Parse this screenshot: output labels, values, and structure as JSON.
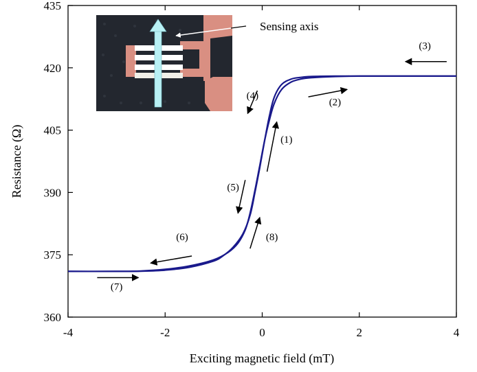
{
  "chart_data": {
    "type": "line",
    "title": "",
    "xlabel": "Exciting magnetic field (mT)",
    "ylabel": "Resistance (Ω)",
    "xlim": [
      -4,
      4
    ],
    "ylim": [
      360,
      435
    ],
    "xticks": [
      -4,
      -2,
      0,
      2,
      4
    ],
    "xtick_labels": [
      "-4",
      "-2",
      "0",
      "2",
      "4"
    ],
    "yticks": [
      360,
      375,
      390,
      405,
      420,
      435
    ],
    "ytick_labels": [
      "360",
      "375",
      "390",
      "405",
      "420",
      "435"
    ],
    "grid": false,
    "line_color": "#1a1a8c",
    "series": [
      {
        "x": [
          -4.0,
          -3.0,
          -2.5,
          -2.0,
          -1.5,
          -1.0,
          -0.7,
          -0.5,
          -0.35,
          -0.25,
          -0.15,
          -0.05,
          0.05,
          0.15,
          0.25,
          0.4,
          0.6,
          0.8,
          1.0,
          1.5,
          2.0,
          3.0,
          4.0
        ],
        "y": [
          371.0,
          371.0,
          371.1,
          371.5,
          372.3,
          373.8,
          375.6,
          377.8,
          381.0,
          385.0,
          390.5,
          396.5,
          402.5,
          407.5,
          411.5,
          414.8,
          416.6,
          417.3,
          417.6,
          417.9,
          418.0,
          418.0,
          418.0
        ]
      },
      {
        "x": [
          4.0,
          3.0,
          2.0,
          1.5,
          1.0,
          0.8,
          0.6,
          0.4,
          0.25,
          0.15,
          0.05,
          -0.05,
          -0.15,
          -0.25,
          -0.4,
          -0.6,
          -0.8,
          -1.0,
          -1.5,
          -2.0,
          -2.5,
          -3.0,
          -4.0
        ],
        "y": [
          418.0,
          418.0,
          418.0,
          418.0,
          417.9,
          417.7,
          417.3,
          416.0,
          413.0,
          408.5,
          402.5,
          396.0,
          390.0,
          384.5,
          380.0,
          376.8,
          374.8,
          373.5,
          372.0,
          371.3,
          371.05,
          371.0,
          371.0
        ]
      }
    ],
    "annotations": [
      {
        "label": "(1)",
        "x": 0.5,
        "y": 402
      },
      {
        "label": "(2)",
        "x": 1.5,
        "y": 411
      },
      {
        "label": "(3)",
        "x": 3.35,
        "y": 424.5
      },
      {
        "label": "(4)",
        "x": -0.2,
        "y": 412.5
      },
      {
        "label": "(5)",
        "x": -0.6,
        "y": 390.5
      },
      {
        "label": "(6)",
        "x": -1.65,
        "y": 378.5
      },
      {
        "label": "(7)",
        "x": -3.0,
        "y": 366.5
      },
      {
        "label": "(8)",
        "x": 0.2,
        "y": 378.5
      }
    ],
    "arrows": [
      {
        "from": [
          0.1,
          395
        ],
        "to": [
          0.3,
          407
        ]
      },
      {
        "from": [
          0.95,
          413
        ],
        "to": [
          1.75,
          414.8
        ]
      },
      {
        "from": [
          3.8,
          421.5
        ],
        "to": [
          2.95,
          421.5
        ]
      },
      {
        "from": [
          -0.1,
          414.5
        ],
        "to": [
          -0.3,
          409
        ]
      },
      {
        "from": [
          -0.35,
          393
        ],
        "to": [
          -0.5,
          385
        ]
      },
      {
        "from": [
          -1.45,
          374.7
        ],
        "to": [
          -2.3,
          373
        ]
      },
      {
        "from": [
          -3.4,
          369.5
        ],
        "to": [
          -2.55,
          369.5
        ]
      },
      {
        "from": [
          -0.25,
          376.5
        ],
        "to": [
          -0.05,
          384
        ]
      }
    ],
    "inset": {
      "label": "Sensing axis"
    }
  }
}
